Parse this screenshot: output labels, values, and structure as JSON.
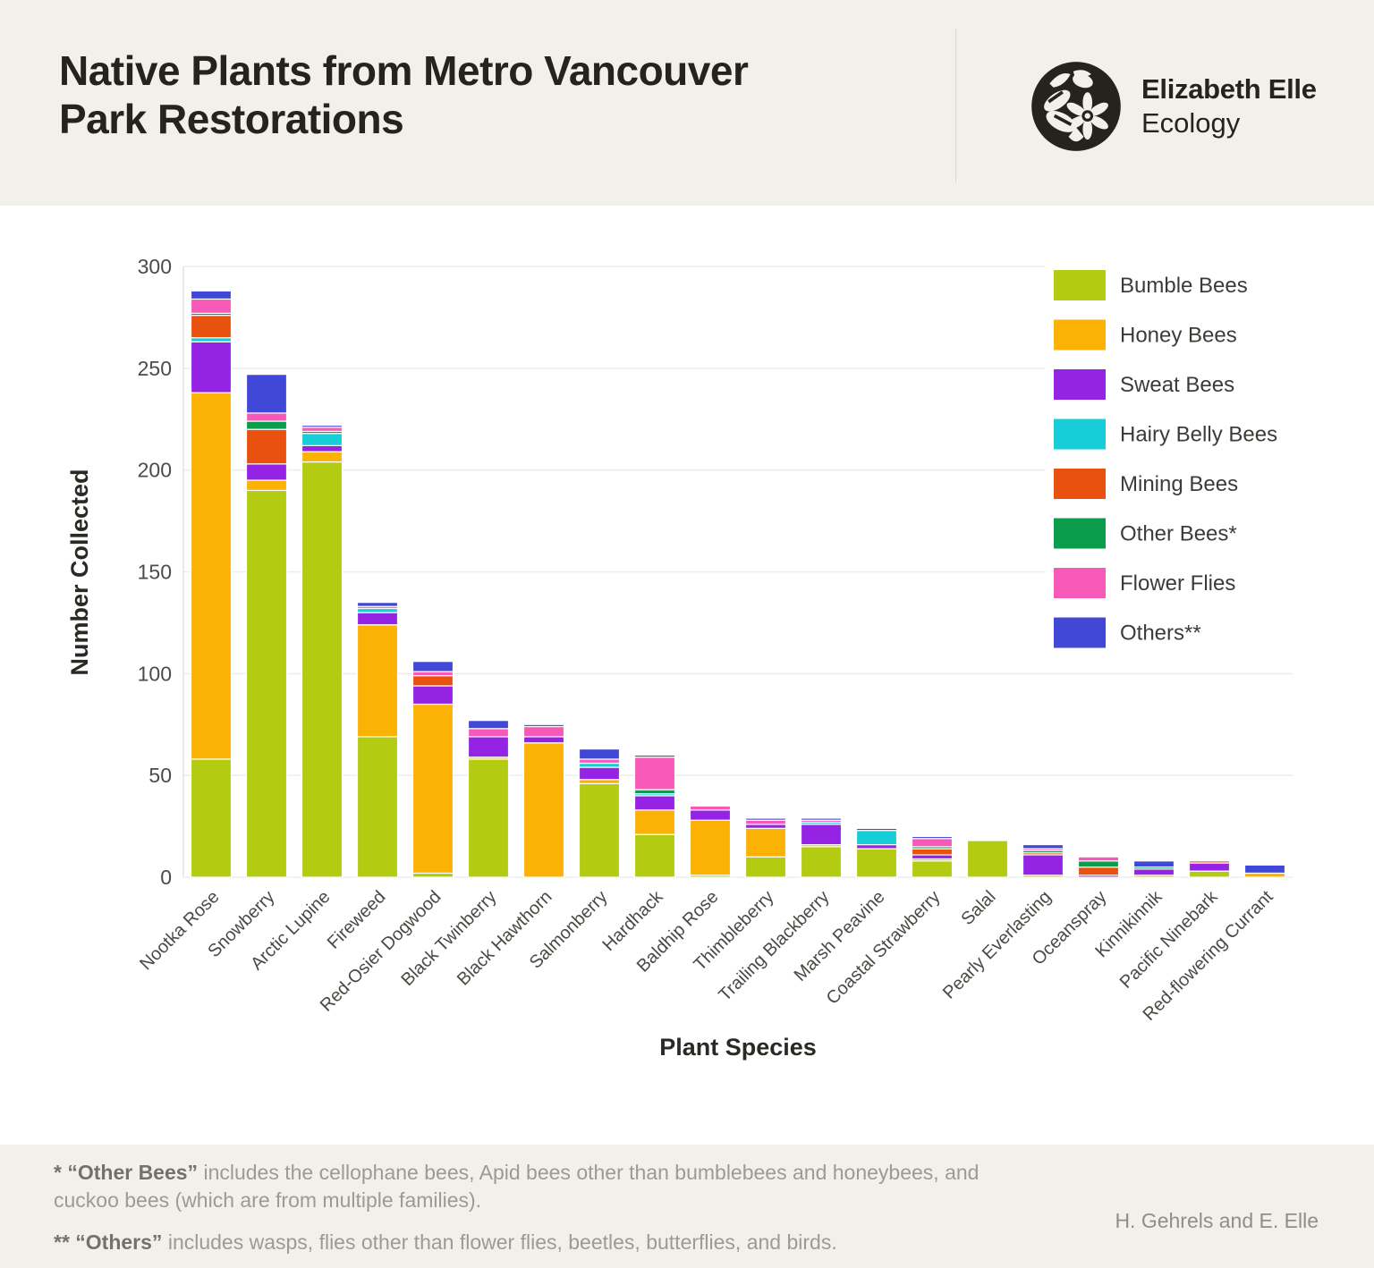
{
  "header": {
    "title": "Native Plants from Metro Vancouver\nPark Restorations",
    "brand_name": "Elizabeth Elle",
    "brand_sub": "Ecology"
  },
  "chart_data": {
    "type": "bar",
    "stacked": true,
    "xlabel": "Plant Species",
    "ylabel": "Number Collected",
    "ylim": [
      0,
      300
    ],
    "ytick_step": 50,
    "grid": true,
    "legend_position": "top-right",
    "categories": [
      "Nootka Rose",
      "Snowberry",
      "Arctic Lupine",
      "Fireweed",
      "Red-Osier Dogwood",
      "Black Twinberry",
      "Black Hawthorn",
      "Salmonberry",
      "Hardhack",
      "Baldhip Rose",
      "Thimbleberry",
      "Trailing Blackberry",
      "Marsh Peavine",
      "Coastal Strawberry",
      "Salal",
      "Pearly Everlasting",
      "Oceanspray",
      "Kinnikinnik",
      "Pacific Ninebark",
      "Red-flowering Currant"
    ],
    "series": [
      {
        "name": "Bumble Bees",
        "color": "#b3cb11",
        "values": [
          58,
          190,
          204,
          69,
          2,
          58,
          0,
          46,
          21,
          1,
          10,
          15,
          14,
          8,
          18,
          1,
          0,
          1,
          3,
          0
        ]
      },
      {
        "name": "Honey Bees",
        "color": "#fcb105",
        "values": [
          180,
          5,
          5,
          55,
          83,
          1,
          66,
          2,
          12,
          27,
          14,
          1,
          0,
          1,
          0,
          0,
          0,
          0,
          0,
          2
        ]
      },
      {
        "name": "Sweat Bees",
        "color": "#9423e4",
        "values": [
          25,
          8,
          3,
          6,
          9,
          10,
          3,
          6,
          7,
          5,
          2,
          10,
          2,
          2,
          0,
          10,
          1,
          3,
          4,
          0
        ]
      },
      {
        "name": "Hairy Belly Bees",
        "color": "#17cdd8",
        "values": [
          2,
          0,
          6,
          2,
          0,
          0,
          0,
          2,
          1,
          0,
          0,
          1,
          7,
          0,
          0,
          0,
          0,
          0,
          0,
          0
        ]
      },
      {
        "name": "Mining Bees",
        "color": "#e8510e",
        "values": [
          11,
          17,
          0,
          0,
          5,
          0,
          0,
          0,
          0,
          0,
          0,
          0,
          0,
          3,
          0,
          1,
          4,
          0,
          1,
          0
        ]
      },
      {
        "name": "Other Bees*",
        "color": "#0b9d4b",
        "values": [
          1,
          4,
          1,
          0,
          0,
          0,
          0,
          0,
          2,
          0,
          0,
          0,
          0,
          1,
          0,
          1,
          3,
          1,
          0,
          0
        ]
      },
      {
        "name": "Flower Flies",
        "color": "#f659b8",
        "values": [
          7,
          4,
          2,
          1,
          2,
          4,
          5,
          2,
          16,
          2,
          2,
          1,
          0,
          4,
          0,
          1,
          2,
          0,
          0,
          0
        ]
      },
      {
        "name": "Others**",
        "color": "#4147d6",
        "values": [
          4,
          19,
          1,
          2,
          5,
          4,
          1,
          5,
          1,
          0,
          1,
          1,
          1,
          1,
          0,
          2,
          0,
          3,
          0,
          4
        ]
      }
    ]
  },
  "footnotes": {
    "note1_bold": "* “Other Bees”",
    "note1_text": " includes the cellophane bees, Apid bees other than bumblebees and honeybees, and cuckoo bees (which are from multiple families).",
    "note2_bold": "** “Others”",
    "note2_text": " includes wasps, flies other than flower flies, beetles, butterflies, and birds.",
    "credit": "H. Gehrels and E. Elle"
  }
}
